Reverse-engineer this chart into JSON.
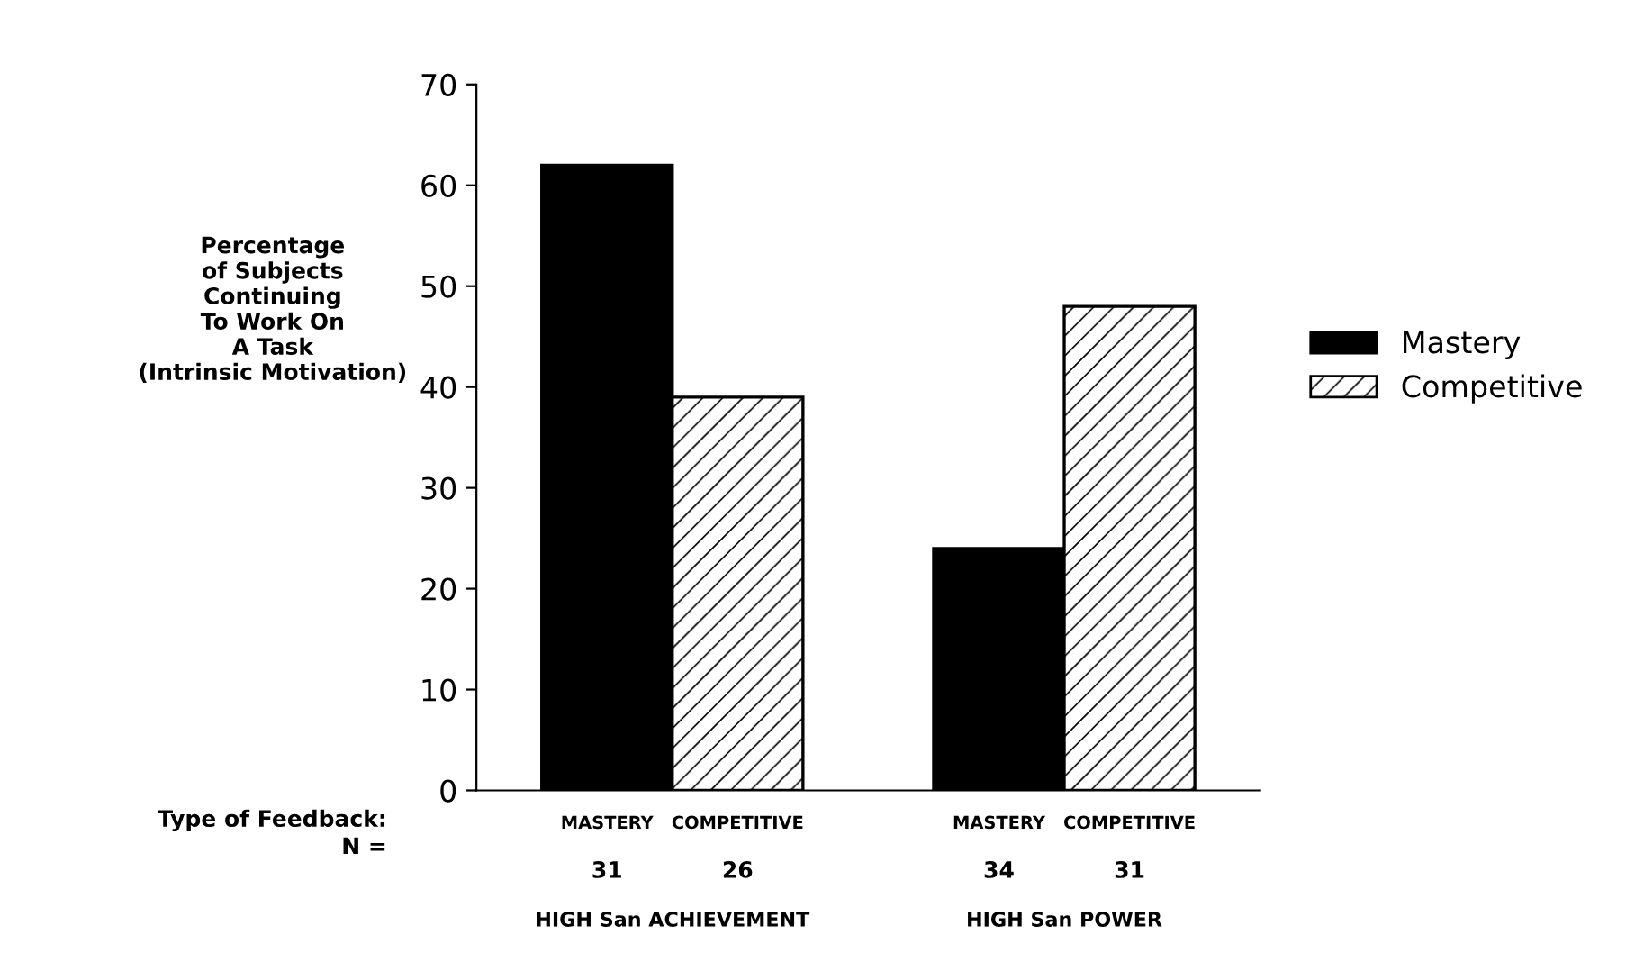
{
  "chart_data": {
    "type": "bar",
    "ylabel": "Percentage\nof Subjects\nContinuing\nTo Work On\nA Task\n(Intrinsic Motivation)",
    "categories": [
      "MASTERY",
      "COMPETITIVE",
      null,
      "MASTERY",
      "COMPETITIVE"
    ],
    "series": [
      {
        "name": "Mastery",
        "color": "#000000",
        "values": [
          62,
          null,
          null,
          24,
          null
        ]
      },
      {
        "name": "Competitive",
        "color": "#000000",
        "values": [
          null,
          39,
          null,
          null,
          48
        ]
      }
    ],
    "ylim": [
      0,
      70
    ],
    "yticks": [
      0,
      10,
      20,
      30,
      40,
      50,
      60,
      70
    ],
    "grid": false,
    "legend": "right",
    "annotations": [
      "Type of Feedback:",
      "N =",
      "31",
      "26",
      "34",
      "31",
      "HIGH San ACHIEVEMENT",
      "HIGH San POWER"
    ]
  }
}
